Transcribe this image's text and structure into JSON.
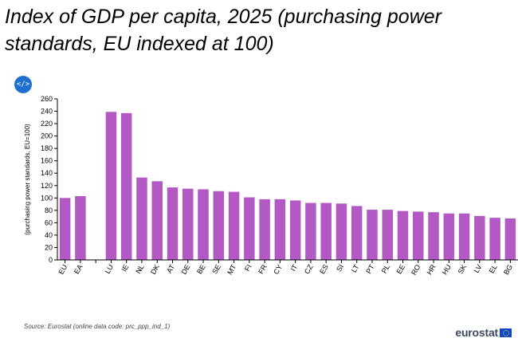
{
  "header": {
    "title": "Index of GDP per capita, 2025 (purchasing power standards, EU indexed at 100)",
    "embed_icon": "</>"
  },
  "footer": {
    "source": "Source: Eurostat (online data code: prc_ppp_ind_1)",
    "logo_text": "eurostat"
  },
  "chart_data": {
    "type": "bar",
    "ylabel": "(purchasing power standards, EU=100)",
    "ylim": [
      0,
      260
    ],
    "yticks": [
      0,
      20,
      40,
      60,
      80,
      100,
      120,
      140,
      160,
      180,
      200,
      220,
      240,
      260
    ],
    "grid": false,
    "bar_color": "#b259c4",
    "categories": [
      "EU",
      "EA",
      "",
      "LU",
      "IE",
      "NL",
      "DK",
      "AT",
      "DE",
      "BE",
      "SE",
      "MT",
      "FI",
      "FR",
      "CY",
      "IT",
      "CZ",
      "ES",
      "SI",
      "LT",
      "PT",
      "PL",
      "EE",
      "RO",
      "HR",
      "HU",
      "SK",
      "LV",
      "EL",
      "BG"
    ],
    "values": [
      100,
      103,
      null,
      239,
      237,
      133,
      127,
      117,
      115,
      114,
      111,
      110,
      101,
      98,
      98,
      96,
      92,
      92,
      91,
      87,
      81,
      81,
      79,
      78,
      77,
      75,
      75,
      71,
      68,
      67
    ]
  }
}
